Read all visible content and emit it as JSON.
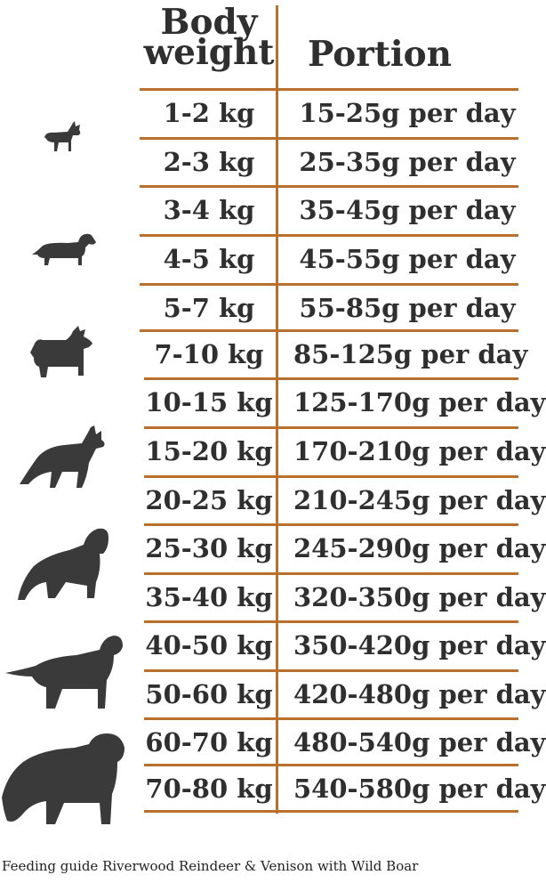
{
  "header": {
    "weight_line1": "Body",
    "weight_line2": "weight",
    "portion": "Portion"
  },
  "rows": [
    {
      "weight": "1-2 kg",
      "portion": "15-25g per day"
    },
    {
      "weight": "2-3 kg",
      "portion": "25-35g per day"
    },
    {
      "weight": "3-4 kg",
      "portion": "35-45g per day"
    },
    {
      "weight": "4-5 kg",
      "portion": "45-55g per day"
    },
    {
      "weight": "5-7 kg",
      "portion": "55-85g per day"
    },
    {
      "weight": "7-10 kg",
      "portion": "85-125g per day"
    },
    {
      "weight": "10-15 kg",
      "portion": "125-170g per day"
    },
    {
      "weight": "15-20 kg",
      "portion": "170-210g per day"
    },
    {
      "weight": "20-25 kg",
      "portion": "210-245g per day"
    },
    {
      "weight": "25-30 kg",
      "portion": "245-290g per day"
    },
    {
      "weight": "35-40 kg",
      "portion": "320-350g per day"
    },
    {
      "weight": "40-50 kg",
      "portion": "350-420g per day"
    },
    {
      "weight": "50-60 kg",
      "portion": "420-480g per day"
    },
    {
      "weight": "60-70 kg",
      "portion": "480-540g per day"
    },
    {
      "weight": "70-80 kg",
      "portion": "540-580g per day"
    }
  ],
  "icons": [
    "chihuahua-icon",
    "dachshund-icon",
    "scottish-terrier-icon",
    "husky-icon",
    "spaniel-icon",
    "labrador-icon",
    "newfoundland-icon"
  ],
  "colors": {
    "lines": "#b8702c",
    "text": "#2f2f2f",
    "dog": "#3a3a3a"
  },
  "caption": "Feeding guide Riverwood Reindeer & Venison with Wild Boar"
}
